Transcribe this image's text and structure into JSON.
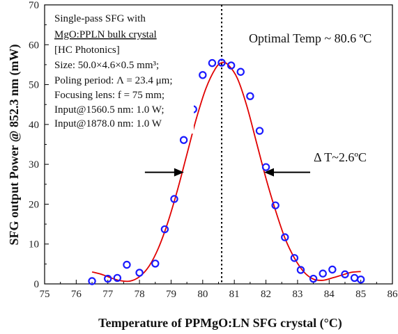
{
  "chart_data": {
    "type": "scatter",
    "xlabel": "Temperature of PPMgO:LN SFG crystal (°C)",
    "ylabel": "SFG output Power @ 852.3 nm (mW)",
    "xlim": [
      75,
      86
    ],
    "ylim": [
      0,
      70
    ],
    "x_ticks": [
      "75",
      "76",
      "77",
      "78",
      "79",
      "80",
      "81",
      "82",
      "83",
      "84",
      "85",
      "86"
    ],
    "y_ticks": [
      "0",
      "10",
      "20",
      "30",
      "40",
      "50",
      "60",
      "70"
    ],
    "grid": false,
    "series": [
      {
        "kind": "measured",
        "marker": "open-circle",
        "color": "#1a1aff",
        "points": [
          [
            76.5,
            0.7
          ],
          [
            77.0,
            1.3
          ],
          [
            77.3,
            1.5
          ],
          [
            77.6,
            4.8
          ],
          [
            78.0,
            2.8
          ],
          [
            78.5,
            5.1
          ],
          [
            78.8,
            13.7
          ],
          [
            79.1,
            21.3
          ],
          [
            79.4,
            36.1
          ],
          [
            79.7,
            43.8
          ],
          [
            80.0,
            52.4
          ],
          [
            80.3,
            55.4
          ],
          [
            80.6,
            55.5
          ],
          [
            80.9,
            54.8
          ],
          [
            81.2,
            53.2
          ],
          [
            81.5,
            47.1
          ],
          [
            81.8,
            38.4
          ],
          [
            82.0,
            29.3
          ],
          [
            82.3,
            19.7
          ],
          [
            82.6,
            11.7
          ],
          [
            82.9,
            6.5
          ],
          [
            83.1,
            3.5
          ],
          [
            83.5,
            1.3
          ],
          [
            83.8,
            2.6
          ],
          [
            84.1,
            3.6
          ],
          [
            84.5,
            2.4
          ],
          [
            84.8,
            1.5
          ],
          [
            85.0,
            1.1
          ]
        ]
      },
      {
        "kind": "fit",
        "color": "#e00000",
        "points": [
          [
            76.5,
            3.0
          ],
          [
            76.8,
            2.4
          ],
          [
            77.1,
            1.5
          ],
          [
            77.4,
            0.8
          ],
          [
            77.7,
            0.7
          ],
          [
            78.0,
            1.8
          ],
          [
            78.3,
            4.4
          ],
          [
            78.6,
            9.0
          ],
          [
            78.9,
            15.5
          ],
          [
            79.2,
            23.5
          ],
          [
            79.5,
            32.5
          ],
          [
            79.8,
            41.5
          ],
          [
            80.1,
            49.0
          ],
          [
            80.4,
            54.0
          ],
          [
            80.6,
            55.5
          ],
          [
            80.8,
            55.0
          ],
          [
            81.1,
            51.5
          ],
          [
            81.4,
            44.5
          ],
          [
            81.7,
            35.5
          ],
          [
            82.0,
            26.5
          ],
          [
            82.3,
            18.5
          ],
          [
            82.6,
            11.5
          ],
          [
            82.9,
            6.5
          ],
          [
            83.2,
            3.0
          ],
          [
            83.5,
            1.2
          ],
          [
            83.8,
            0.9
          ],
          [
            84.1,
            1.5
          ],
          [
            84.4,
            2.2
          ],
          [
            84.7,
            2.9
          ],
          [
            85.0,
            3.1
          ]
        ]
      }
    ],
    "optimal_temp": 80.6,
    "fwhm_left": 79.45,
    "fwhm_right": 81.9,
    "fwhm_level": 28,
    "annotations": {
      "optimal": "Optimal Temp ~ 80.6 ºC",
      "delta": "Δ T~2.6ºC"
    },
    "info_box": {
      "lines": [
        "Single-pass SFG with",
        "MgO:PPLN bulk crystal",
        "[HC Photonics]",
        "Size: 50.0×4.6×0.5 mm³;",
        "Poling period: Λ = 23.4 μm;",
        "Focusing lens: f = 75 mm;",
        "Input@1560.5 nm: 1.0 W;",
        "Input@1878.0 nm: 1.0 W"
      ],
      "highlight_color": "#cc0000"
    }
  }
}
